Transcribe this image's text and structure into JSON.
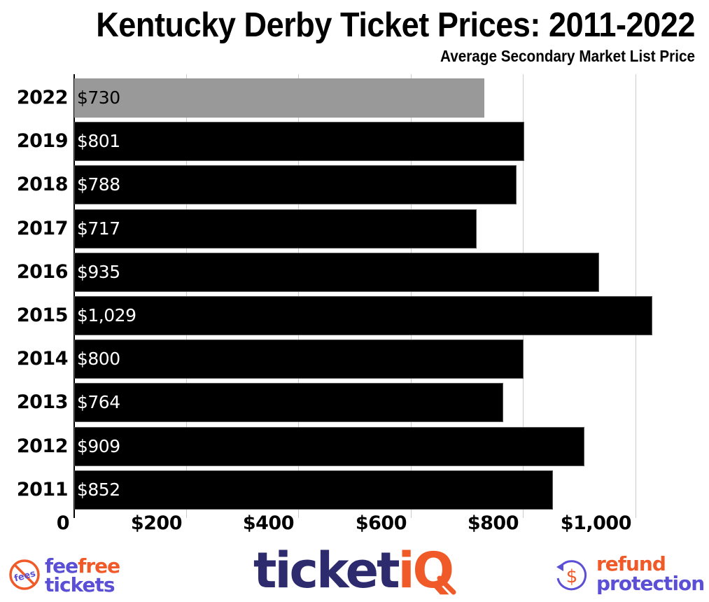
{
  "header": {
    "title": "Kentucky Derby Ticket Prices: 2011-2022",
    "subtitle": "Average Secondary Market List Price"
  },
  "colors": {
    "highlight_bar": "#999999",
    "bar": "#000000",
    "gridline": "#cccccc",
    "brand_purple": "#2d2a6e",
    "brand_orange": "#f05a28",
    "brand_violet": "#5b4fd6"
  },
  "chart_data": {
    "type": "bar",
    "orientation": "horizontal",
    "title": "Kentucky Derby Ticket Prices: 2011-2022",
    "subtitle": "Average Secondary Market List Price",
    "xlabel": "",
    "ylabel": "",
    "categories": [
      "2022",
      "2019",
      "2018",
      "2017",
      "2016",
      "2015",
      "2014",
      "2013",
      "2012",
      "2011"
    ],
    "values": [
      730,
      801,
      788,
      717,
      935,
      1029,
      800,
      764,
      909,
      852
    ],
    "value_labels": [
      "$730",
      "$801",
      "$788",
      "$717",
      "$935",
      "$1,029",
      "$800",
      "$764",
      "$909",
      "$852"
    ],
    "highlighted": [
      "2022"
    ],
    "xlim": [
      0,
      1090
    ],
    "xticks": [
      0,
      200,
      400,
      600,
      800,
      1000
    ],
    "xtick_labels": [
      "0",
      "$200",
      "$400",
      "$600",
      "$800",
      "$1,000"
    ],
    "grid": true,
    "legend": null
  },
  "footer": {
    "left_logo": {
      "icon": "no-fees-icon",
      "icon_text": "fees",
      "line1_a": "fee",
      "line1_b": "free",
      "line2": "tickets"
    },
    "center_logo": {
      "text_a": "ticket",
      "text_b": "iQ"
    },
    "right_logo": {
      "icon": "refund-dollar-icon",
      "icon_text": "$",
      "line1": "refund",
      "line2": "protection"
    }
  }
}
